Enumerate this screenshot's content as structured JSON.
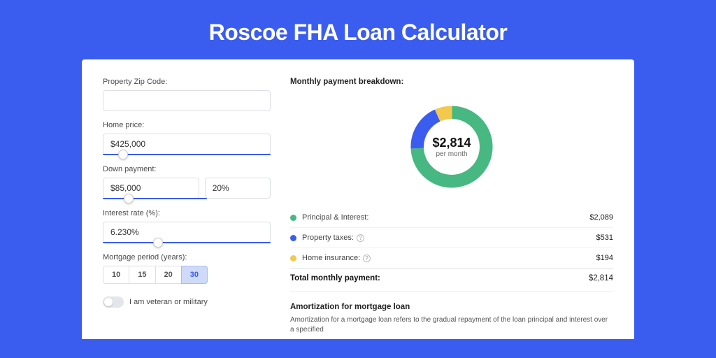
{
  "title": "Roscoe FHA Loan Calculator",
  "form": {
    "zip_label": "Property Zip Code:",
    "zip_value": "",
    "price_label": "Home price:",
    "price_value": "$425,000",
    "price_slider_pct": 9,
    "down_label": "Down payment:",
    "down_value": "$85,000",
    "down_pct_value": "20%",
    "down_slider_pct": 20,
    "rate_label": "Interest rate (%):",
    "rate_value": "6.230%",
    "rate_slider_pct": 30,
    "period_label": "Mortgage period (years):",
    "periods": [
      "10",
      "15",
      "20",
      "30"
    ],
    "period_selected": "30",
    "veteran_label": "I am veteran or military"
  },
  "breakdown": {
    "title": "Monthly payment breakdown:",
    "donut": {
      "amount": "$2,814",
      "sub": "per month",
      "slices": [
        {
          "label": "Principal & Interest",
          "value": 2089,
          "color": "#47b881"
        },
        {
          "label": "Property taxes",
          "value": 531,
          "color": "#3a5cef"
        },
        {
          "label": "Home insurance",
          "value": 194,
          "color": "#f2c94c"
        }
      ]
    },
    "items": [
      {
        "label": "Principal & Interest:",
        "color": "#47b881",
        "value": "$2,089",
        "help": false
      },
      {
        "label": "Property taxes:",
        "color": "#3a5cef",
        "value": "$531",
        "help": true
      },
      {
        "label": "Home insurance:",
        "color": "#f2c94c",
        "value": "$194",
        "help": true
      }
    ],
    "total_label": "Total monthly payment:",
    "total_value": "$2,814"
  },
  "amortization": {
    "title": "Amortization for mortgage loan",
    "text": "Amortization for a mortgage loan refers to the gradual repayment of the loan principal and interest over a specified"
  },
  "colors": {
    "bg": "#3a5cef",
    "card": "#ffffff",
    "border": "#dcdfe6"
  }
}
